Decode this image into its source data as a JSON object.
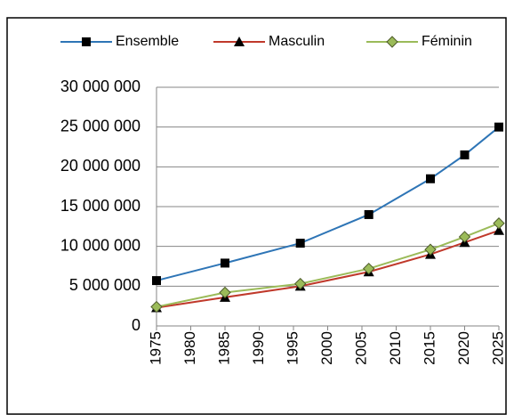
{
  "chart_data": {
    "type": "line",
    "x": [
      1975,
      1985,
      1996,
      2006,
      2015,
      2020,
      2025
    ],
    "series": [
      {
        "name": "Ensemble",
        "color": "#2e75b6",
        "marker": "square",
        "marker_color": "#000000",
        "values": [
          5700000,
          7900000,
          10400000,
          14000000,
          18500000,
          21500000,
          25000000
        ]
      },
      {
        "name": "Masculin",
        "color": "#c0392b",
        "marker": "triangle",
        "marker_color": "#000000",
        "values": [
          2300000,
          3600000,
          5000000,
          6800000,
          9000000,
          10500000,
          12000000
        ]
      },
      {
        "name": "Féminin",
        "color": "#9bbb59",
        "marker": "diamond",
        "marker_color": "#9bbb59",
        "values": [
          2400000,
          4200000,
          5300000,
          7200000,
          9600000,
          11200000,
          12900000
        ]
      }
    ],
    "xlim": [
      1975,
      2025
    ],
    "xticks": [
      1975,
      1980,
      1985,
      1990,
      1995,
      2000,
      2005,
      2010,
      2015,
      2020,
      2025
    ],
    "ylim": [
      0,
      30000000
    ],
    "yticks": [
      0,
      {
        "value": 5000000,
        "label": "5 000 000"
      },
      {
        "value": 10000000,
        "label": "10 000 000"
      },
      {
        "value": 15000000,
        "label": "15 000 000"
      },
      {
        "value": 20000000,
        "label": "20 000 000"
      },
      {
        "value": 25000000,
        "label": "25 000 000"
      },
      {
        "value": 30000000,
        "label": "30 000 000"
      }
    ],
    "grid": true,
    "legend": "top"
  }
}
